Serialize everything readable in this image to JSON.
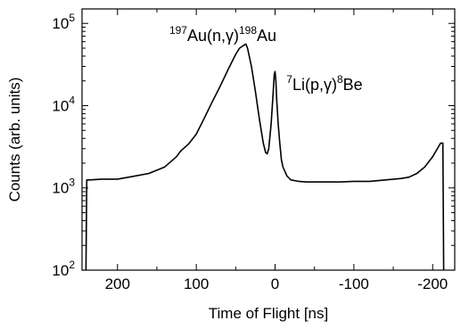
{
  "chart_data": {
    "type": "line",
    "title": "",
    "xlabel": "Time of Flight  [ns]",
    "ylabel": "Counts (arb. units)",
    "x_reversed": true,
    "xlim": [
      245,
      -228
    ],
    "ylim": [
      100,
      150000
    ],
    "y_scale": "log",
    "grid": false,
    "x_ticks": [
      {
        "value": 200,
        "label": "200"
      },
      {
        "value": 100,
        "label": "100"
      },
      {
        "value": 0,
        "label": "0"
      },
      {
        "value": -100,
        "label": "-100"
      },
      {
        "value": -200,
        "label": "-200"
      }
    ],
    "y_ticks": [
      {
        "value": 100,
        "base": "10",
        "exp": "2"
      },
      {
        "value": 1000,
        "base": "10",
        "exp": "3"
      },
      {
        "value": 10000,
        "base": "10",
        "exp": "4"
      },
      {
        "value": 100000,
        "base": "10",
        "exp": "5"
      }
    ],
    "annotations": [
      {
        "id": "au",
        "parts": [
          {
            "t": "197",
            "sup": true
          },
          {
            "t": "Au(n,γ)",
            "sup": false
          },
          {
            "t": "198",
            "sup": true
          },
          {
            "t": "Au",
            "sup": false
          }
        ]
      },
      {
        "id": "li",
        "parts": [
          {
            "t": "7",
            "sup": true
          },
          {
            "t": "Li(p,γ)",
            "sup": false
          },
          {
            "t": "8",
            "sup": true
          },
          {
            "t": "Be",
            "sup": false
          }
        ]
      }
    ],
    "series": [
      {
        "x": [
          240,
          239,
          235,
          220,
          200,
          180,
          160,
          140,
          125,
          120,
          110,
          100,
          90,
          80,
          70,
          60,
          50,
          45,
          40,
          37,
          35,
          30,
          25,
          20,
          15,
          12,
          10,
          8,
          5,
          3,
          1,
          0,
          -1,
          -2,
          -4,
          -6,
          -8,
          -10,
          -15,
          -20,
          -30,
          -40,
          -60,
          -80,
          -100,
          -120,
          -140,
          -160,
          -170,
          -180,
          -190,
          -200,
          -205,
          -210,
          -213,
          -214
        ],
        "y": [
          100,
          1250,
          1250,
          1280,
          1280,
          1380,
          1500,
          1800,
          2400,
          2800,
          3400,
          4500,
          7000,
          11000,
          17000,
          27000,
          42000,
          50000,
          54000,
          56000,
          50000,
          30000,
          15000,
          7000,
          3500,
          2700,
          2600,
          3000,
          6000,
          12000,
          24000,
          26000,
          20000,
          12000,
          6000,
          3500,
          2200,
          1800,
          1400,
          1250,
          1200,
          1180,
          1180,
          1180,
          1200,
          1200,
          1250,
          1300,
          1350,
          1500,
          1800,
          2400,
          2900,
          3500,
          3500,
          100
        ]
      }
    ]
  }
}
